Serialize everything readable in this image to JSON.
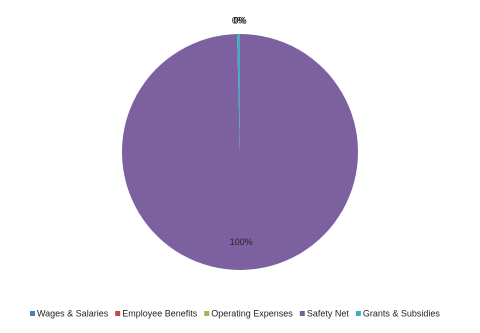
{
  "chart_data": {
    "type": "pie",
    "categories": [
      "Wages & Salaries",
      "Employee Benefits",
      "Operating Expenses",
      "Safety Net",
      "Grants & Subsidies"
    ],
    "values": [
      0,
      0,
      0,
      99.6,
      0.4
    ],
    "value_labels": [
      "0%",
      "0%",
      "0%",
      "100%",
      "0%"
    ],
    "colors": [
      "#4a7ebb",
      "#be4b48",
      "#98b954",
      "#7d60a0",
      "#46aac5"
    ],
    "legend": "bottom"
  }
}
